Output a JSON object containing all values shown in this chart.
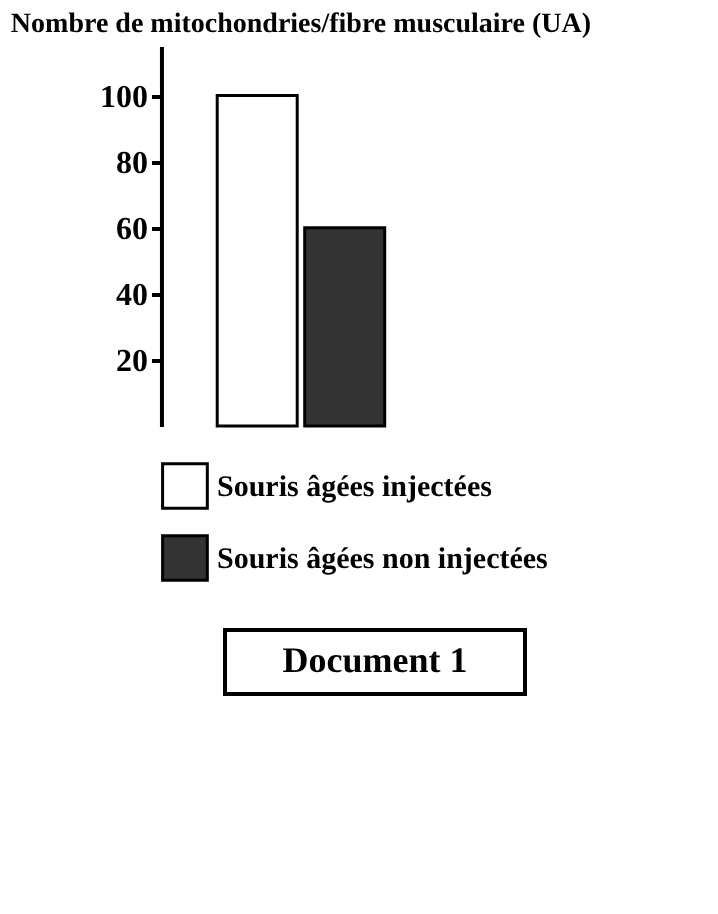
{
  "chart_data": {
    "type": "bar",
    "ylabel": "Nombre de mitochondries/fibre musculaire (UA)",
    "categories": [
      null,
      null
    ],
    "series": [
      {
        "name": "Souris âgées injectées",
        "color": "#ffffff",
        "values": [
          100,
          null
        ]
      },
      {
        "name": "Souris âgées non injectées",
        "color": "#333333",
        "values": [
          null,
          60
        ]
      }
    ],
    "ylim": [
      0,
      115
    ],
    "yticks": [
      20,
      40,
      60,
      80,
      100
    ],
    "grid": false,
    "stacked": true,
    "legend": "bottom",
    "tick_labels": "y",
    "annotations": [
      "Document 1"
    ]
  }
}
